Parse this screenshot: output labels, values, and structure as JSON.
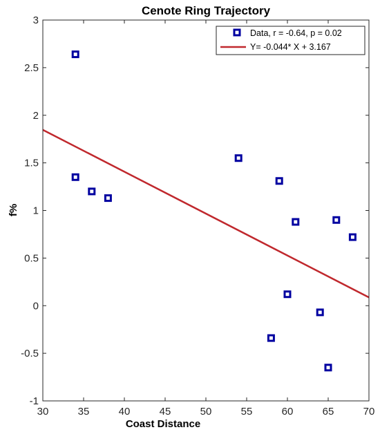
{
  "chart_data": {
    "type": "scatter",
    "title": "Cenote Ring Trajectory",
    "xlabel": "Coast Distance",
    "ylabel": "f%",
    "xlim": [
      30,
      70
    ],
    "ylim": [
      -1,
      3
    ],
    "xticks": [
      "30",
      "35",
      "40",
      "45",
      "50",
      "55",
      "60",
      "65",
      "70"
    ],
    "yticks": [
      "-1",
      "-0.5",
      "0",
      "0.5",
      "1",
      "1.5",
      "2",
      "2.5",
      "3"
    ],
    "grid": false,
    "legend_position": "top-right",
    "series": [
      {
        "name": "Data, r = -0.64, p = 0.02",
        "type": "scatter",
        "marker": "square",
        "color": "#0000a0",
        "points": [
          {
            "x": 34,
            "y": 2.64
          },
          {
            "x": 34,
            "y": 1.35
          },
          {
            "x": 36,
            "y": 1.2
          },
          {
            "x": 38,
            "y": 1.13
          },
          {
            "x": 54,
            "y": 1.55
          },
          {
            "x": 58,
            "y": -0.34
          },
          {
            "x": 59,
            "y": 1.31
          },
          {
            "x": 60,
            "y": 0.12
          },
          {
            "x": 61,
            "y": 0.88
          },
          {
            "x": 64,
            "y": -0.07
          },
          {
            "x": 65,
            "y": -0.65
          },
          {
            "x": 66,
            "y": 0.9
          },
          {
            "x": 68,
            "y": 0.72
          }
        ]
      },
      {
        "name": "Y= -0.044* X + 3.167",
        "type": "line",
        "color": "#c0282d",
        "slope": -0.044,
        "intercept": 3.167,
        "x": [
          30,
          70
        ],
        "y": [
          1.847,
          0.087
        ]
      }
    ]
  }
}
